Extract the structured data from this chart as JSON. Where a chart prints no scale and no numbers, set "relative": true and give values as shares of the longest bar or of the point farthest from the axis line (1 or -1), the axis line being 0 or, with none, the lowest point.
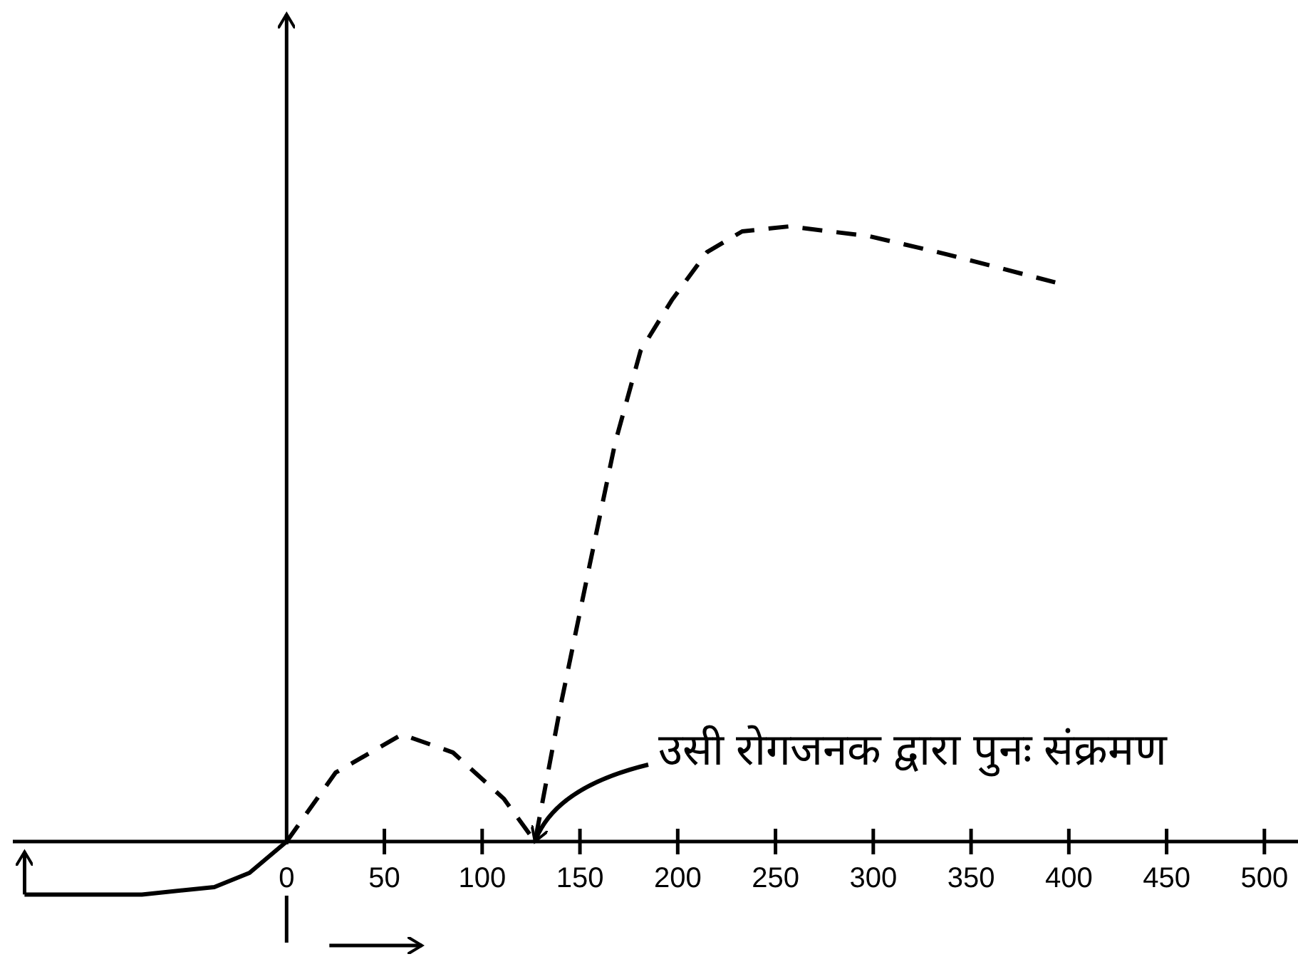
{
  "chart_data": {
    "type": "line",
    "relative": true,
    "xlim": [
      -140,
      515
    ],
    "xticks": [
      0,
      50,
      100,
      150,
      200,
      250,
      300,
      350,
      400,
      450,
      500
    ],
    "series": [
      {
        "color": "#000000",
        "line_style": "dashed",
        "x": [
          0,
          25,
          59,
          85,
          111,
          127,
          140,
          155,
          168,
          181,
          197,
          215,
          233,
          257,
          298,
          337,
          393
        ],
        "values": [
          0,
          0.112,
          0.174,
          0.145,
          0.07,
          0,
          0.219,
          0.45,
          0.648,
          0.798,
          0.88,
          0.958,
          0.992,
          1,
          0.984,
          0.955,
          0.909
        ]
      },
      {
        "color": "#000000",
        "line_style": "solid",
        "x": [
          -134,
          -74,
          -37,
          -19,
          0
        ],
        "values": [
          -0.086,
          -0.086,
          -0.074,
          -0.051,
          0
        ]
      }
    ],
    "annotations": [
      {
        "text": "उसी रोगजनक द्वारा पुनः संक्रमण",
        "x": 127,
        "y": 0
      }
    ]
  }
}
